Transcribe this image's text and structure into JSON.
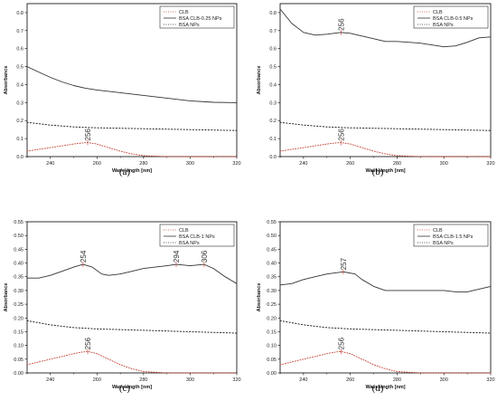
{
  "chart_data": [
    {
      "type": "line",
      "panel_label": "(a)",
      "xlabel": "Wavelength [nm]",
      "ylabel": "Absorbance",
      "xlim": [
        230,
        320
      ],
      "ylim": [
        0.0,
        0.85
      ],
      "xticks": [
        240,
        260,
        280,
        300,
        320
      ],
      "yticks": [
        0.0,
        0.1,
        0.2,
        0.3,
        0.4,
        0.5,
        0.6,
        0.7,
        0.8
      ],
      "legend_position": "top-right",
      "series": [
        {
          "name": "CLB",
          "style": "dotted-red",
          "x": [
            230,
            235,
            240,
            245,
            250,
            253,
            256,
            260,
            265,
            270,
            275,
            280,
            290,
            300,
            310,
            320
          ],
          "y": [
            0.03,
            0.04,
            0.05,
            0.06,
            0.07,
            0.075,
            0.078,
            0.07,
            0.05,
            0.03,
            0.015,
            0.005,
            0.0,
            0.0,
            0.0,
            0.0
          ]
        },
        {
          "name": "BSA CLB-0.25 NPs",
          "style": "solid",
          "x": [
            230,
            235,
            240,
            245,
            250,
            255,
            260,
            270,
            280,
            290,
            300,
            310,
            320
          ],
          "y": [
            0.5,
            0.47,
            0.44,
            0.415,
            0.395,
            0.38,
            0.37,
            0.355,
            0.34,
            0.325,
            0.31,
            0.302,
            0.3
          ]
        },
        {
          "name": "BSA NPs",
          "style": "dotted-black",
          "x": [
            230,
            240,
            250,
            260,
            280,
            300,
            320
          ],
          "y": [
            0.19,
            0.175,
            0.165,
            0.16,
            0.155,
            0.15,
            0.145
          ]
        }
      ],
      "annotations": [
        {
          "text": "256",
          "x": 256
        }
      ]
    },
    {
      "type": "line",
      "panel_label": "(b)",
      "xlabel": "Wavelength [nm]",
      "ylabel": "Absorbance",
      "xlim": [
        230,
        320
      ],
      "ylim": [
        0.0,
        0.85
      ],
      "xticks": [
        240,
        260,
        280,
        300,
        320
      ],
      "yticks": [
        0.0,
        0.1,
        0.2,
        0.3,
        0.4,
        0.5,
        0.6,
        0.7,
        0.8
      ],
      "legend_position": "top-right",
      "series": [
        {
          "name": "CLB",
          "style": "dotted-red",
          "x": [
            230,
            235,
            240,
            245,
            250,
            253,
            256,
            260,
            265,
            270,
            275,
            280,
            290,
            300,
            310,
            320
          ],
          "y": [
            0.03,
            0.04,
            0.05,
            0.06,
            0.07,
            0.075,
            0.078,
            0.07,
            0.05,
            0.03,
            0.015,
            0.005,
            0.0,
            0.0,
            0.0,
            0.0
          ]
        },
        {
          "name": "BSA CLB-0.5 NPs",
          "style": "solid",
          "x": [
            230,
            235,
            240,
            245,
            250,
            256,
            260,
            265,
            270,
            275,
            280,
            285,
            290,
            295,
            300,
            305,
            310,
            315,
            320
          ],
          "y": [
            0.82,
            0.74,
            0.69,
            0.675,
            0.68,
            0.69,
            0.685,
            0.67,
            0.655,
            0.64,
            0.64,
            0.635,
            0.63,
            0.62,
            0.61,
            0.615,
            0.635,
            0.66,
            0.665
          ]
        },
        {
          "name": "BSA NPs",
          "style": "dotted-black",
          "x": [
            230,
            240,
            250,
            260,
            280,
            300,
            320
          ],
          "y": [
            0.19,
            0.175,
            0.165,
            0.16,
            0.155,
            0.15,
            0.145
          ]
        }
      ],
      "annotations": [
        {
          "text": "256",
          "x": 256
        },
        {
          "text": "256",
          "x": 256
        }
      ]
    },
    {
      "type": "line",
      "panel_label": "(c)",
      "xlabel": "Wavelength [nm]",
      "ylabel": "Absorbance",
      "xlim": [
        230,
        320
      ],
      "ylim": [
        0.0,
        0.55
      ],
      "xticks": [
        240,
        260,
        280,
        300,
        320
      ],
      "yticks": [
        0.0,
        0.05,
        0.1,
        0.15,
        0.2,
        0.25,
        0.3,
        0.35,
        0.4,
        0.45,
        0.5,
        0.55
      ],
      "legend_position": "top-right",
      "series": [
        {
          "name": "CLB",
          "style": "dotted-red",
          "x": [
            230,
            235,
            240,
            245,
            250,
            253,
            256,
            260,
            265,
            270,
            275,
            280,
            290,
            300,
            310,
            320
          ],
          "y": [
            0.03,
            0.04,
            0.05,
            0.06,
            0.07,
            0.075,
            0.078,
            0.07,
            0.05,
            0.03,
            0.015,
            0.005,
            0.0,
            0.0,
            0.0,
            0.0
          ]
        },
        {
          "name": "BSA CLB-1 NPs",
          "style": "solid",
          "x": [
            230,
            235,
            240,
            245,
            250,
            254,
            258,
            262,
            265,
            270,
            275,
            280,
            285,
            290,
            294,
            300,
            306,
            310,
            315,
            320
          ],
          "y": [
            0.345,
            0.345,
            0.355,
            0.37,
            0.385,
            0.395,
            0.385,
            0.36,
            0.355,
            0.36,
            0.37,
            0.38,
            0.385,
            0.39,
            0.395,
            0.39,
            0.395,
            0.38,
            0.35,
            0.325
          ]
        },
        {
          "name": "BSA NPs",
          "style": "dotted-black",
          "x": [
            230,
            240,
            250,
            260,
            280,
            300,
            320
          ],
          "y": [
            0.19,
            0.175,
            0.165,
            0.16,
            0.155,
            0.15,
            0.145
          ]
        }
      ],
      "annotations": [
        {
          "text": "254",
          "x": 254
        },
        {
          "text": "294",
          "x": 294
        },
        {
          "text": "306",
          "x": 306
        },
        {
          "text": "256",
          "x": 256
        }
      ]
    },
    {
      "type": "line",
      "panel_label": "(d)",
      "xlabel": "Wavelength [nm]",
      "ylabel": "Absorbance",
      "xlim": [
        230,
        320
      ],
      "ylim": [
        0.0,
        0.55
      ],
      "xticks": [
        240,
        260,
        280,
        300,
        320
      ],
      "yticks": [
        0.0,
        0.05,
        0.1,
        0.15,
        0.2,
        0.25,
        0.3,
        0.35,
        0.4,
        0.45,
        0.5,
        0.55
      ],
      "legend_position": "top-right",
      "series": [
        {
          "name": "CLB",
          "style": "dotted-red",
          "x": [
            230,
            235,
            240,
            245,
            250,
            253,
            256,
            260,
            265,
            270,
            275,
            280,
            290,
            300,
            310,
            320
          ],
          "y": [
            0.03,
            0.04,
            0.05,
            0.06,
            0.07,
            0.075,
            0.078,
            0.07,
            0.05,
            0.03,
            0.015,
            0.005,
            0.0,
            0.0,
            0.0,
            0.0
          ]
        },
        {
          "name": "BSA CLB-1.5 NPs",
          "style": "solid",
          "x": [
            230,
            235,
            240,
            245,
            250,
            257,
            262,
            265,
            270,
            275,
            280,
            290,
            300,
            305,
            310,
            315,
            320
          ],
          "y": [
            0.32,
            0.325,
            0.34,
            0.35,
            0.36,
            0.368,
            0.36,
            0.34,
            0.315,
            0.3,
            0.3,
            0.3,
            0.3,
            0.295,
            0.295,
            0.305,
            0.315
          ]
        },
        {
          "name": "BSA NPs",
          "style": "dotted-black",
          "x": [
            230,
            240,
            250,
            260,
            280,
            300,
            320
          ],
          "y": [
            0.19,
            0.175,
            0.165,
            0.16,
            0.155,
            0.15,
            0.145
          ]
        }
      ],
      "annotations": [
        {
          "text": "257",
          "x": 257
        },
        {
          "text": "256",
          "x": 256
        }
      ]
    }
  ]
}
